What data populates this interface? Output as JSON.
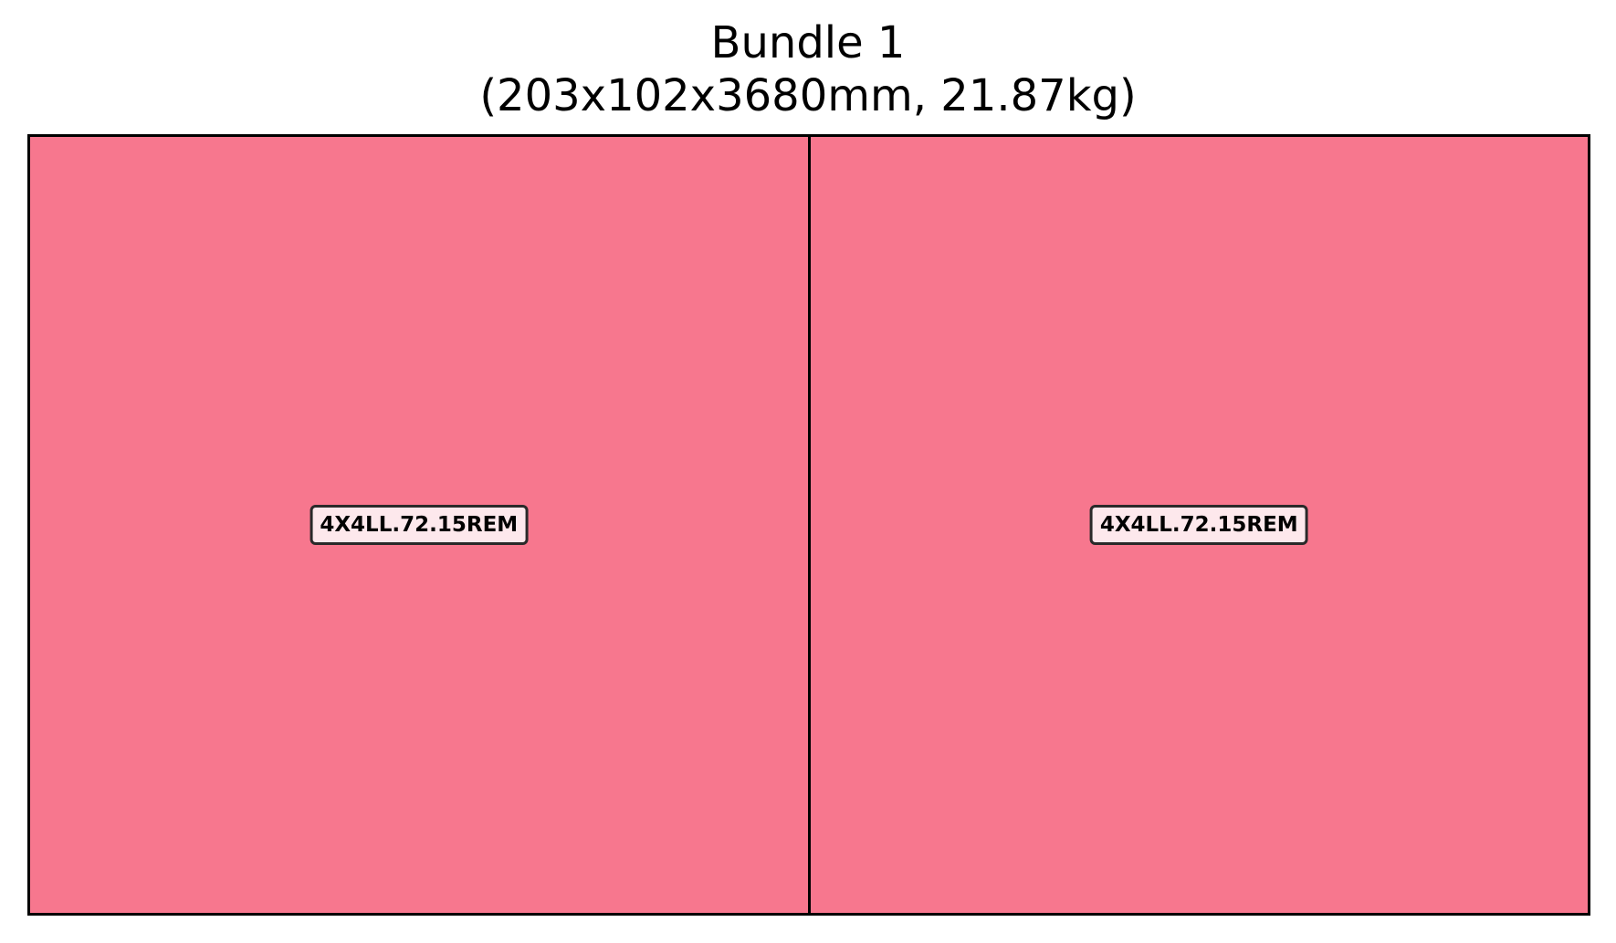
{
  "title": {
    "line1": "Bundle 1",
    "line2": "(203x102x3680mm, 21.87kg)"
  },
  "bundle": {
    "pieces": [
      {
        "label": "4X4LL.72.15REM",
        "color": "#f7778e"
      },
      {
        "label": "4X4LL.72.15REM",
        "color": "#f7778e"
      }
    ]
  }
}
